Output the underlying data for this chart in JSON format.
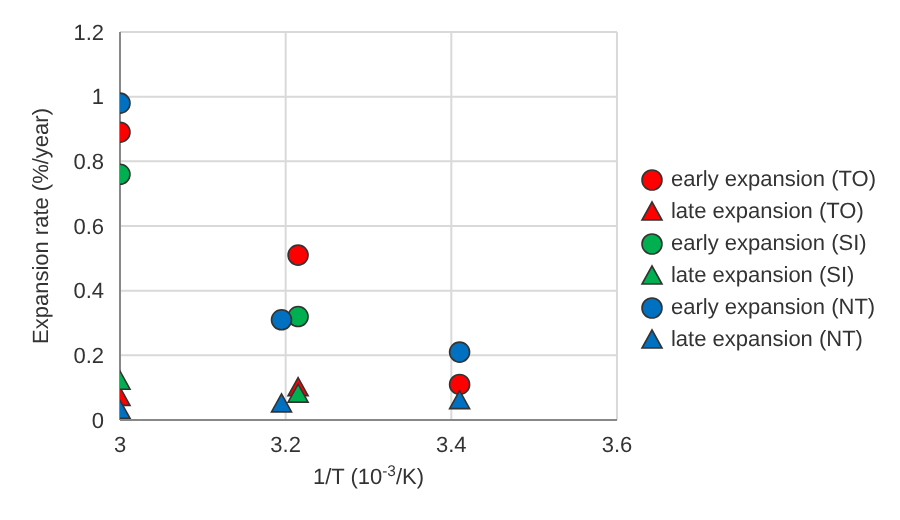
{
  "chart_data": {
    "type": "scatter",
    "xlabel": "1/T (10$^{-3}$/K)",
    "ylabel": "Expansion rate (%/year)",
    "xlim": [
      3,
      3.6
    ],
    "xticks": [
      3,
      3.2,
      3.4,
      3.6
    ],
    "ylim": [
      0,
      1.2
    ],
    "yticks": [
      0,
      0.2,
      0.4,
      0.6,
      0.8,
      1,
      1.2
    ],
    "grid": true,
    "legend": "right",
    "series": [
      {
        "name": "early expansion (TO)",
        "color": "#ff0000",
        "marker": "circle",
        "x": [
          3,
          3.215,
          3.41
        ],
        "values": [
          0.89,
          0.51,
          0.11
        ]
      },
      {
        "name": "late expansion (TO)",
        "color": "#ff0000",
        "marker": "triangle",
        "x": [
          3,
          3.215
        ],
        "values": [
          0.07,
          0.1
        ]
      },
      {
        "name": "early expansion (SI)",
        "color": "#00b050",
        "marker": "circle",
        "x": [
          3,
          3.215
        ],
        "values": [
          0.76,
          0.32
        ]
      },
      {
        "name": "late expansion (SI)",
        "color": "#00b050",
        "marker": "triangle",
        "x": [
          3,
          3.215
        ],
        "values": [
          0.12,
          0.08
        ]
      },
      {
        "name": "early expansion (NT)",
        "color": "#0070c0",
        "marker": "circle",
        "x": [
          3,
          3.195,
          3.41
        ],
        "values": [
          0.98,
          0.31,
          0.21
        ]
      },
      {
        "name": "late expansion (NT)",
        "color": "#0070c0",
        "marker": "triangle",
        "x": [
          3,
          3.195,
          3.41
        ],
        "values": [
          0.03,
          0.05,
          0.06
        ]
      }
    ]
  }
}
